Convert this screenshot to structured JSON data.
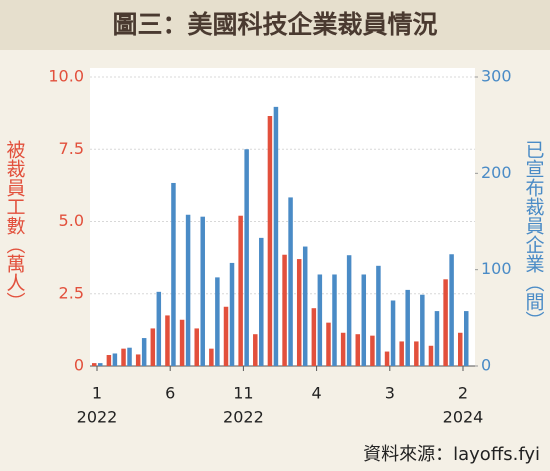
{
  "chart_data": {
    "type": "bar",
    "title": "圖三：美國科技企業裁員情況",
    "y_label": "被裁員工數（萬人）",
    "y2_label": "已宣布裁員企業（間）",
    "source": "資料來源：layoffs.fyi",
    "categories": [
      "1",
      null,
      null,
      null,
      null,
      "6",
      null,
      null,
      null,
      null,
      "11",
      null,
      null,
      null,
      null,
      "4",
      null,
      null,
      null,
      null,
      "3",
      null,
      null,
      null,
      null,
      "2"
    ],
    "years": [
      "2022",
      null,
      null,
      null,
      null,
      null,
      null,
      null,
      null,
      null,
      "2022",
      null,
      null,
      null,
      null,
      null,
      null,
      null,
      null,
      null,
      null,
      null,
      null,
      null,
      null,
      "2024"
    ],
    "series": [
      {
        "name": "被裁員工數",
        "color": "#e2503c",
        "values": [
          0.1,
          0.38,
          0.6,
          0.4,
          1.3,
          1.75,
          1.6,
          1.3,
          0.6,
          2.05,
          5.2,
          1.1,
          8.65,
          3.85,
          3.7,
          2.0,
          1.5,
          1.15,
          1.1,
          1.05,
          0.5,
          0.85,
          0.85,
          0.7,
          3.0,
          1.15
        ]
      },
      {
        "name": "已宣布裁員企業",
        "color": "#4a8bc6",
        "axis": "y2",
        "values": [
          3,
          13,
          19,
          29,
          77,
          190,
          157,
          155,
          92,
          107,
          225,
          133,
          269,
          175,
          124,
          95,
          95,
          115,
          95,
          104,
          68,
          79,
          74,
          57,
          116,
          57
        ]
      }
    ],
    "ylim": [
      0,
      10
    ],
    "yticks": [
      0,
      {
        "value": 2.5,
        "label": "2.5"
      },
      {
        "value": 5,
        "label": "5.0"
      },
      {
        "value": 7.5,
        "label": "7.5"
      },
      {
        "value": 10,
        "label": "10.0"
      }
    ],
    "y2lim": [
      0,
      300
    ],
    "y2ticks": [
      0,
      100,
      200,
      300
    ],
    "grid": true
  }
}
